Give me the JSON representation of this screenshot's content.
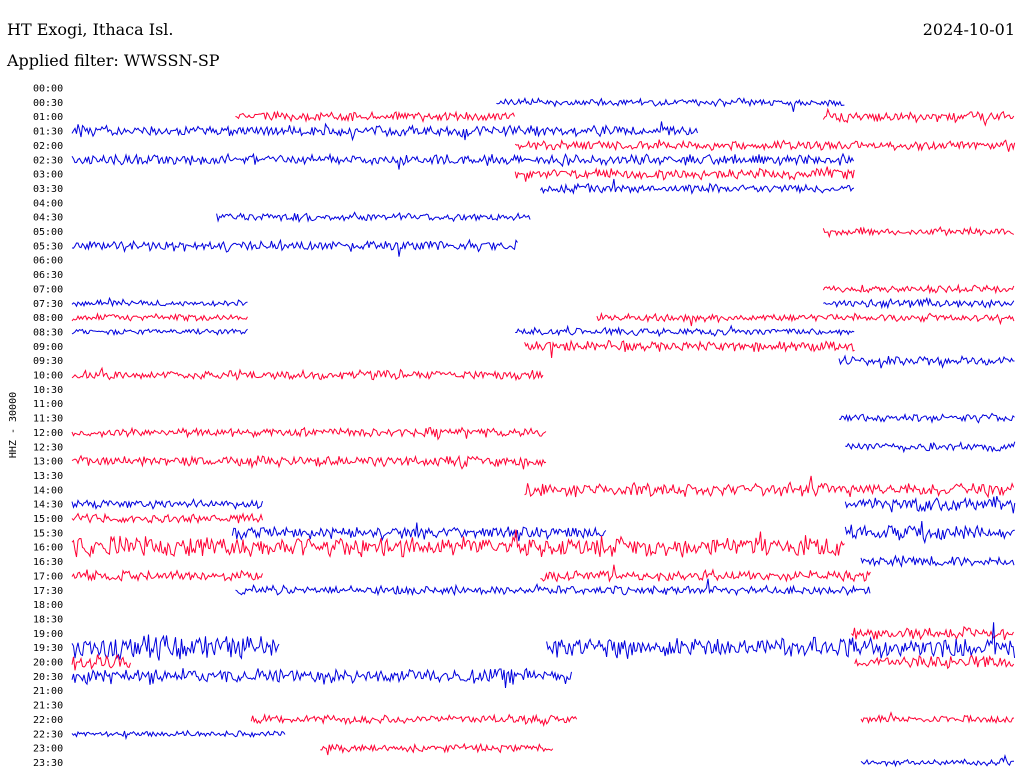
{
  "header": {
    "station": "HT Exogi, Ithaca Isl.",
    "date": "2024-10-01",
    "filter": "Applied filter: WWSSN-SP"
  },
  "chart_data": {
    "type": "line",
    "title": "HT Exogi, Ithaca Isl.",
    "ylabel": "HHZ - 30000",
    "xlabel": "",
    "grid": false,
    "y_ticks": [
      "00:00",
      "00:30",
      "01:00",
      "01:30",
      "02:00",
      "02:30",
      "03:00",
      "03:30",
      "04:00",
      "04:30",
      "05:00",
      "05:30",
      "06:00",
      "06:30",
      "07:00",
      "07:30",
      "08:00",
      "08:30",
      "09:00",
      "09:30",
      "10:00",
      "10:30",
      "11:00",
      "11:30",
      "12:00",
      "12:30",
      "13:00",
      "13:30",
      "14:00",
      "14:30",
      "15:00",
      "15:30",
      "16:00",
      "16:30",
      "17:00",
      "17:30",
      "18:00",
      "18:30",
      "19:00",
      "19:30",
      "20:00",
      "20:30",
      "21:00",
      "21:30",
      "22:00",
      "22:30",
      "23:00",
      "23:30"
    ],
    "trace_colors": [
      "#ff0033",
      "#0000dd"
    ],
    "x_range_minutes": [
      0,
      30
    ],
    "segments": [
      {
        "row": 0.5,
        "start": 13.5,
        "end": 24.6,
        "amp": 0.25
      },
      {
        "row": 1,
        "start": 5.2,
        "end": 14.1,
        "amp": 0.3
      },
      {
        "row": 1,
        "start": 23.9,
        "end": 30,
        "amp": 0.35
      },
      {
        "row": 1.5,
        "start": 0,
        "end": 19.9,
        "amp": 0.35
      },
      {
        "row": 2,
        "start": 14.1,
        "end": 30,
        "amp": 0.3
      },
      {
        "row": 2.5,
        "start": 0,
        "end": 24.9,
        "amp": 0.35
      },
      {
        "row": 3,
        "start": 14.1,
        "end": 24.9,
        "amp": 0.35
      },
      {
        "row": 3.5,
        "start": 14.9,
        "end": 24.9,
        "amp": 0.3
      },
      {
        "row": 4.5,
        "start": 4.6,
        "end": 14.6,
        "amp": 0.3
      },
      {
        "row": 5,
        "start": 23.9,
        "end": 30,
        "amp": 0.25
      },
      {
        "row": 5.5,
        "start": 0,
        "end": 14.2,
        "amp": 0.35
      },
      {
        "row": 7,
        "start": 23.9,
        "end": 30,
        "amp": 0.25
      },
      {
        "row": 7.5,
        "start": 0,
        "end": 5.6,
        "amp": 0.2
      },
      {
        "row": 7.5,
        "start": 23.9,
        "end": 30,
        "amp": 0.3
      },
      {
        "row": 8,
        "start": 0,
        "end": 5.6,
        "amp": 0.25
      },
      {
        "row": 8,
        "start": 16.7,
        "end": 30,
        "amp": 0.25
      },
      {
        "row": 8.5,
        "start": 0,
        "end": 5.6,
        "amp": 0.2
      },
      {
        "row": 8.5,
        "start": 14.1,
        "end": 24.9,
        "amp": 0.25
      },
      {
        "row": 9,
        "start": 14.4,
        "end": 24.9,
        "amp": 0.35
      },
      {
        "row": 9.5,
        "start": 24.4,
        "end": 30,
        "amp": 0.3
      },
      {
        "row": 10,
        "start": 0,
        "end": 15,
        "amp": 0.3
      },
      {
        "row": 11.5,
        "start": 24.4,
        "end": 30,
        "amp": 0.3
      },
      {
        "row": 12,
        "start": 0,
        "end": 15.1,
        "amp": 0.3
      },
      {
        "row": 12.5,
        "start": 24.6,
        "end": 30,
        "amp": 0.3
      },
      {
        "row": 13,
        "start": 0,
        "end": 15.1,
        "amp": 0.35
      },
      {
        "row": 14,
        "start": 14.4,
        "end": 30,
        "amp": 0.45
      },
      {
        "row": 14.5,
        "start": 0,
        "end": 6.1,
        "amp": 0.3
      },
      {
        "row": 14.5,
        "start": 24.6,
        "end": 30,
        "amp": 0.5
      },
      {
        "row": 15,
        "start": 0,
        "end": 6.1,
        "amp": 0.3
      },
      {
        "row": 15.5,
        "start": 5.1,
        "end": 17,
        "amp": 0.4
      },
      {
        "row": 15.5,
        "start": 24.6,
        "end": 30,
        "amp": 0.55
      },
      {
        "row": 16,
        "start": 0,
        "end": 24.6,
        "amp": 0.7
      },
      {
        "row": 16.5,
        "start": 25.1,
        "end": 30,
        "amp": 0.35
      },
      {
        "row": 17,
        "start": 0,
        "end": 6.1,
        "amp": 0.35
      },
      {
        "row": 17,
        "start": 14.9,
        "end": 25.4,
        "amp": 0.35
      },
      {
        "row": 17.5,
        "start": 5.2,
        "end": 25.4,
        "amp": 0.3
      },
      {
        "row": 19,
        "start": 24.8,
        "end": 30,
        "amp": 0.4
      },
      {
        "row": 19.5,
        "start": 0,
        "end": 6.6,
        "amp": 0.8
      },
      {
        "row": 19.5,
        "start": 15.1,
        "end": 30,
        "amp": 0.7
      },
      {
        "row": 20,
        "start": 0,
        "end": 1.9,
        "amp": 0.6
      },
      {
        "row": 20,
        "start": 24.9,
        "end": 30,
        "amp": 0.45
      },
      {
        "row": 20.5,
        "start": 0,
        "end": 15.9,
        "amp": 0.5
      },
      {
        "row": 22,
        "start": 5.7,
        "end": 16.1,
        "amp": 0.3
      },
      {
        "row": 22,
        "start": 25.1,
        "end": 30,
        "amp": 0.25
      },
      {
        "row": 22.5,
        "start": 0,
        "end": 6.8,
        "amp": 0.2
      },
      {
        "row": 23,
        "start": 7.9,
        "end": 15.3,
        "amp": 0.25
      },
      {
        "row": 23.5,
        "start": 25.1,
        "end": 30,
        "amp": 0.2
      }
    ]
  }
}
